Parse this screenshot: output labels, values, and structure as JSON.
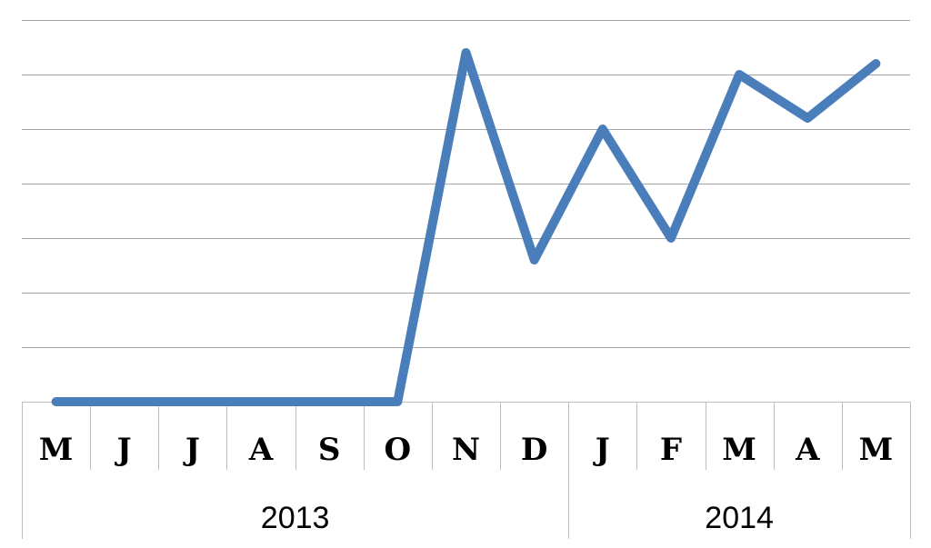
{
  "chart_data": {
    "type": "line",
    "title": "",
    "xlabel": "",
    "ylabel": "",
    "categories": [
      "M",
      "J",
      "J",
      "A",
      "S",
      "O",
      "N",
      "D",
      "J",
      "F",
      "M",
      "A",
      "M"
    ],
    "year_groups": [
      {
        "label": "2013",
        "count": 8
      },
      {
        "label": "2014",
        "count": 5
      }
    ],
    "series": [
      {
        "values": [
          0,
          0,
          0,
          0,
          0,
          0,
          6.4,
          2.6,
          5,
          3,
          6,
          5.2,
          6.2
        ],
        "color": "#4a7ebb"
      }
    ],
    "ylim": [
      0,
      7
    ],
    "y_tick_count": 7,
    "grid": true,
    "y_tick_labels_shown": false,
    "legend": "none"
  }
}
